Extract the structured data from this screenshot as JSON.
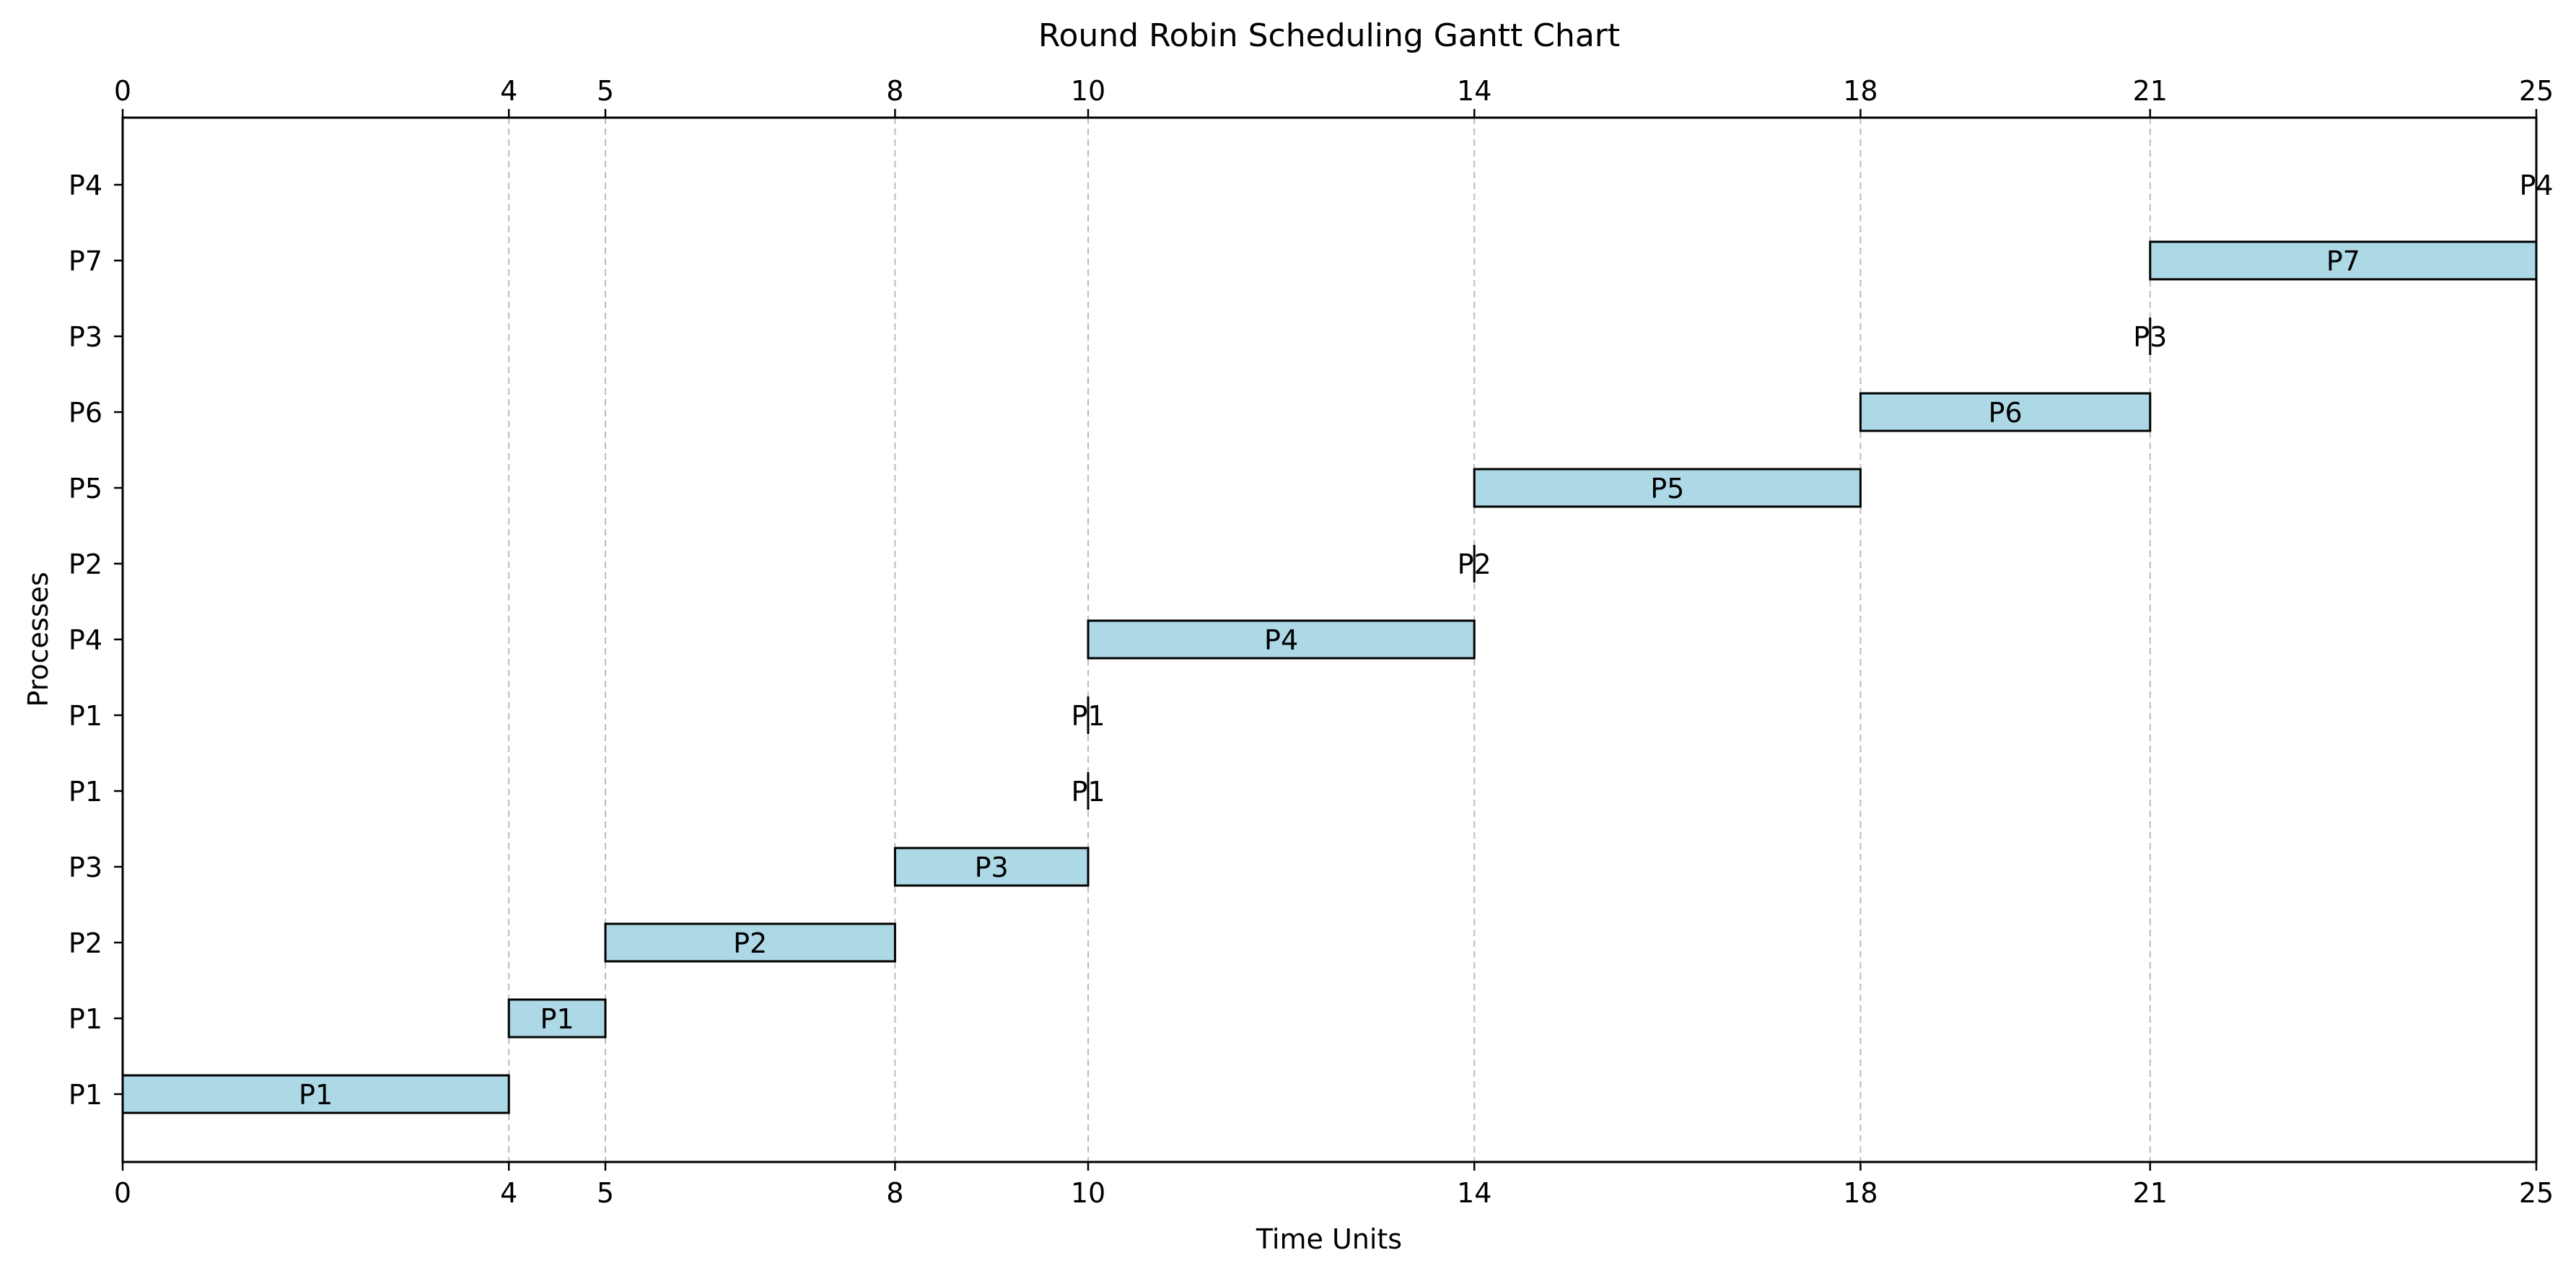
{
  "chart_data": {
    "type": "bar",
    "title": "Round Robin Scheduling Gantt Chart",
    "xlabel": "Time Units",
    "ylabel": "Processes",
    "xlim": [
      0,
      25
    ],
    "xticks": [
      0,
      4,
      5,
      8,
      10,
      14,
      18,
      21,
      25
    ],
    "xtick_labels": [
      "0",
      "4",
      "5",
      "8",
      "10",
      "14",
      "18",
      "21",
      "25"
    ],
    "ytick_labels": [
      "P1",
      "P1",
      "P2",
      "P3",
      "P1",
      "P1",
      "P4",
      "P2",
      "P5",
      "P6",
      "P3",
      "P7",
      "P4"
    ],
    "bars": [
      {
        "process": "P1",
        "start": 0,
        "end": 4
      },
      {
        "process": "P1",
        "start": 4,
        "end": 5
      },
      {
        "process": "P2",
        "start": 5,
        "end": 8
      },
      {
        "process": "P3",
        "start": 8,
        "end": 10
      },
      {
        "process": "P1",
        "start": 10,
        "end": 10
      },
      {
        "process": "P1",
        "start": 10,
        "end": 10
      },
      {
        "process": "P4",
        "start": 10,
        "end": 14
      },
      {
        "process": "P2",
        "start": 14,
        "end": 14
      },
      {
        "process": "P5",
        "start": 14,
        "end": 18
      },
      {
        "process": "P6",
        "start": 18,
        "end": 21
      },
      {
        "process": "P3",
        "start": 21,
        "end": 21
      },
      {
        "process": "P7",
        "start": 21,
        "end": 25
      },
      {
        "process": "P4",
        "start": 25,
        "end": 25
      }
    ],
    "gridlines_at": [
      4,
      5,
      8,
      10,
      14,
      18,
      21
    ],
    "grid": "vertical dashed",
    "legend": "none",
    "colors": {
      "bar_fill": "#add8e6",
      "bar_edge": "#000000",
      "grid": "#bbbbbb",
      "background": "#ffffff"
    }
  }
}
